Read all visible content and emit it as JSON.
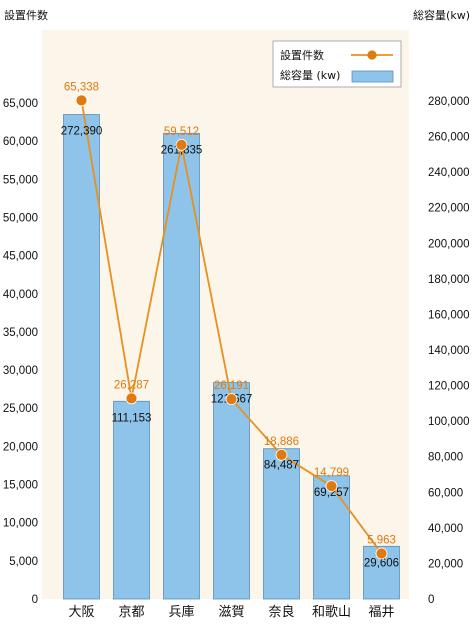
{
  "chart_data": {
    "type": "bar",
    "categories": [
      "大阪",
      "京都",
      "兵庫",
      "滋賀",
      "奈良",
      "和歌山",
      "福井"
    ],
    "series": [
      {
        "name": "総容量 (kw)",
        "type": "bar",
        "axis": "right",
        "values": [
          272390,
          111153,
          261835,
          121667,
          84487,
          69257,
          29606
        ],
        "labels": [
          "272,390",
          "111,153",
          "261,835",
          "121,667",
          "84,487",
          "69,257",
          "29,606"
        ]
      },
      {
        "name": "設置件数",
        "type": "line",
        "axis": "left",
        "values": [
          65338,
          26287,
          59512,
          26191,
          18886,
          14799,
          5963
        ],
        "labels": [
          "65,338",
          "26,287",
          "59,512",
          "26,191",
          "18,886",
          "14,799",
          "5,963"
        ]
      }
    ],
    "left_axis": {
      "title": "設置件数",
      "range": [
        0,
        65000
      ],
      "ticks": [
        0,
        5000,
        10000,
        15000,
        20000,
        25000,
        30000,
        35000,
        40000,
        45000,
        50000,
        55000,
        60000,
        65000
      ],
      "tick_labels": [
        "0",
        "5,000",
        "10,000",
        "15,000",
        "20,000",
        "25,000",
        "30,000",
        "35,000",
        "40,000",
        "45,000",
        "50,000",
        "55,000",
        "60,000",
        "65,000"
      ]
    },
    "right_axis": {
      "title": "総容量(kw)",
      "range": [
        0,
        280000
      ],
      "ticks": [
        0,
        20000,
        40000,
        60000,
        80000,
        100000,
        120000,
        140000,
        160000,
        180000,
        200000,
        220000,
        240000,
        260000,
        280000
      ],
      "tick_labels": [
        "0",
        "20,000",
        "40,000",
        "60,000",
        "80,000",
        "100,000",
        "120,000",
        "140,000",
        "160,000",
        "180,000",
        "200,000",
        "220,000",
        "240,000",
        "260,000",
        "280,000"
      ]
    },
    "legend": {
      "placement": "top-right",
      "items": [
        "設置件数",
        "総容量 (kw)"
      ]
    },
    "grid": false
  },
  "colors": {
    "plot_background": "#fbf5ea",
    "bar_fill": "#8ec4ea",
    "bar_stroke": "#5b8fb8",
    "line": "#e8901e",
    "marker": "#e07a10",
    "line_label": "#e07a10"
  }
}
